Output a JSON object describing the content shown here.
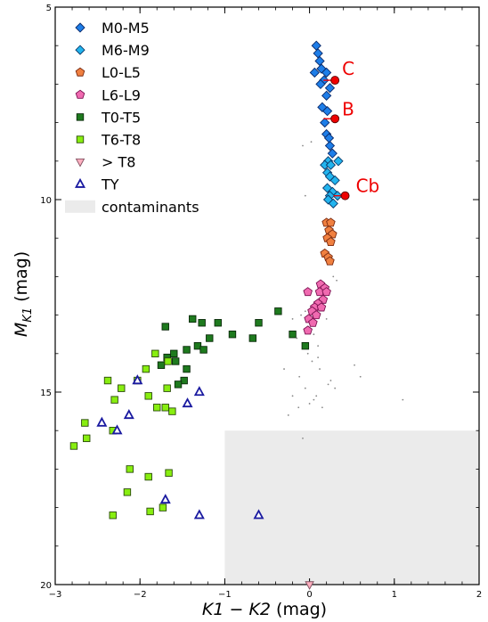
{
  "chart_data": {
    "type": "scatter",
    "xlabel_main": "K1 − K2",
    "xlabel_unit": " (mag)",
    "ylabel_main": "M",
    "ylabel_sub": "K1",
    "ylabel_unit": " (mag)",
    "xlim": [
      -3,
      2
    ],
    "ylim": [
      5,
      20
    ],
    "y_inverted": true,
    "x_ticks": [
      "−3",
      "−2",
      "−1",
      "0",
      "1",
      "2"
    ],
    "y_ticks": [
      "5",
      "10",
      "15",
      "20"
    ],
    "grid": false,
    "legend_placement": "top-left",
    "contaminant_region": {
      "x0": -1,
      "x1": 2,
      "y0": 16,
      "y1": 20,
      "color": "#ebebeb"
    },
    "legend": [
      {
        "label": "M0-M5",
        "marker": "diamond",
        "fill": "#1e7ee8",
        "stroke": "#0a2a6a"
      },
      {
        "label": "M6-M9",
        "marker": "diamond",
        "fill": "#22b4ee",
        "stroke": "#0a3a6a"
      },
      {
        "label": "L0-L5",
        "marker": "pentagon",
        "fill": "#f08040",
        "stroke": "#7a2a10"
      },
      {
        "label": "L6-L9",
        "marker": "pentagon",
        "fill": "#f06ab0",
        "stroke": "#7a1050"
      },
      {
        "label": "T0-T5",
        "marker": "square",
        "fill": "#1e7a1e",
        "stroke": "#0a2a0a"
      },
      {
        "label": "T6-T8",
        "marker": "square",
        "fill": "#88ee10",
        "stroke": "#2a4a0a"
      },
      {
        "label": "> T8",
        "marker": "triangle-down",
        "fill": "#ffb0c0",
        "stroke": "#805060"
      },
      {
        "label": "TY",
        "marker": "triangle-up",
        "fill": "#ffffff",
        "stroke": "#1a1aa0"
      },
      {
        "label": "contaminants",
        "marker": "patch",
        "fill": "#ebebeb",
        "stroke": "none"
      }
    ],
    "series": [
      {
        "name": "M0-M5",
        "points": [
          [
            0.08,
            6.0
          ],
          [
            0.1,
            6.2
          ],
          [
            0.12,
            6.4
          ],
          [
            0.14,
            6.6
          ],
          [
            0.06,
            6.7
          ],
          [
            0.2,
            6.7
          ],
          [
            0.17,
            6.9
          ],
          [
            0.13,
            7.0
          ],
          [
            0.24,
            7.1
          ],
          [
            0.2,
            7.3
          ],
          [
            0.15,
            7.6
          ],
          [
            0.21,
            7.7
          ],
          [
            0.18,
            8.0
          ],
          [
            0.2,
            8.3
          ],
          [
            0.24,
            8.6
          ],
          [
            0.27,
            8.8
          ],
          [
            0.23,
            8.4
          ]
        ]
      },
      {
        "name": "M6-M9",
        "points": [
          [
            0.22,
            9.0
          ],
          [
            0.18,
            9.1
          ],
          [
            0.25,
            9.1
          ],
          [
            0.34,
            9.0
          ],
          [
            0.21,
            9.3
          ],
          [
            0.24,
            9.4
          ],
          [
            0.3,
            9.5
          ],
          [
            0.21,
            9.7
          ],
          [
            0.27,
            9.8
          ],
          [
            0.33,
            9.9
          ],
          [
            0.24,
            9.9
          ],
          [
            0.22,
            10.0
          ],
          [
            0.28,
            10.1
          ]
        ]
      },
      {
        "name": "L0-L5",
        "points": [
          [
            0.2,
            10.6
          ],
          [
            0.25,
            10.6
          ],
          [
            0.23,
            10.8
          ],
          [
            0.27,
            10.9
          ],
          [
            0.21,
            11.0
          ],
          [
            0.25,
            11.1
          ],
          [
            0.18,
            11.4
          ],
          [
            0.22,
            11.5
          ],
          [
            0.24,
            11.6
          ]
        ]
      },
      {
        "name": "L6-L9",
        "points": [
          [
            0.13,
            12.2
          ],
          [
            0.18,
            12.3
          ],
          [
            0.12,
            12.4
          ],
          [
            0.2,
            12.4
          ],
          [
            -0.02,
            12.4
          ],
          [
            0.16,
            12.6
          ],
          [
            0.1,
            12.7
          ],
          [
            0.06,
            12.8
          ],
          [
            0.14,
            12.8
          ],
          [
            0.03,
            12.9
          ],
          [
            0.08,
            13.0
          ],
          [
            -0.01,
            13.1
          ],
          [
            0.04,
            13.2
          ],
          [
            -0.02,
            13.4
          ]
        ]
      },
      {
        "name": "T0-T5",
        "points": [
          [
            -1.7,
            13.3
          ],
          [
            -1.38,
            13.1
          ],
          [
            -1.27,
            13.2
          ],
          [
            -1.08,
            13.2
          ],
          [
            -0.6,
            13.2
          ],
          [
            -0.37,
            12.9
          ],
          [
            -1.18,
            13.6
          ],
          [
            -0.91,
            13.5
          ],
          [
            -0.67,
            13.6
          ],
          [
            -0.2,
            13.5
          ],
          [
            -1.32,
            13.8
          ],
          [
            -1.45,
            13.9
          ],
          [
            -1.6,
            14.0
          ],
          [
            -1.68,
            14.1
          ],
          [
            -1.75,
            14.3
          ],
          [
            -1.58,
            14.2
          ],
          [
            -1.45,
            14.4
          ],
          [
            -1.48,
            14.7
          ],
          [
            -1.55,
            14.8
          ],
          [
            -0.05,
            13.8
          ],
          [
            -1.25,
            13.9
          ]
        ]
      },
      {
        "name": "T6-T8",
        "points": [
          [
            -1.82,
            14.0
          ],
          [
            -1.67,
            14.2
          ],
          [
            -1.93,
            14.4
          ],
          [
            -2.38,
            14.7
          ],
          [
            -2.03,
            14.7
          ],
          [
            -2.22,
            14.9
          ],
          [
            -1.68,
            14.9
          ],
          [
            -1.9,
            15.1
          ],
          [
            -2.3,
            15.2
          ],
          [
            -1.8,
            15.4
          ],
          [
            -1.7,
            15.4
          ],
          [
            -1.62,
            15.5
          ],
          [
            -2.65,
            15.8
          ],
          [
            -2.32,
            16.0
          ],
          [
            -2.63,
            16.2
          ],
          [
            -2.78,
            16.4
          ],
          [
            -2.12,
            17.0
          ],
          [
            -1.66,
            17.1
          ],
          [
            -1.9,
            17.2
          ],
          [
            -2.15,
            17.6
          ],
          [
            -1.88,
            18.1
          ],
          [
            -1.73,
            18.0
          ],
          [
            -2.32,
            18.2
          ]
        ]
      },
      {
        "name": "> T8",
        "points": [
          [
            0.0,
            20.0
          ]
        ]
      },
      {
        "name": "TY",
        "points": [
          [
            -2.03,
            14.7
          ],
          [
            -1.3,
            15.0
          ],
          [
            -1.44,
            15.3
          ],
          [
            -2.13,
            15.6
          ],
          [
            -2.45,
            15.8
          ],
          [
            -2.27,
            16.0
          ],
          [
            -1.7,
            17.8
          ],
          [
            -1.3,
            18.2
          ],
          [
            -0.6,
            18.2
          ]
        ]
      }
    ],
    "contaminants": [
      [
        -0.05,
        9.9
      ],
      [
        -0.08,
        8.6
      ],
      [
        0.02,
        8.5
      ],
      [
        0.28,
        12.0
      ],
      [
        0.32,
        12.1
      ],
      [
        -0.05,
        12.9
      ],
      [
        -0.1,
        13.0
      ],
      [
        -0.2,
        13.1
      ],
      [
        0.05,
        13.5
      ],
      [
        0.1,
        13.8
      ],
      [
        -0.02,
        14.0
      ],
      [
        0.03,
        14.2
      ],
      [
        0.12,
        14.4
      ],
      [
        -0.12,
        14.6
      ],
      [
        0.25,
        14.7
      ],
      [
        0.3,
        14.9
      ],
      [
        -0.05,
        14.9
      ],
      [
        0.08,
        15.1
      ],
      [
        -0.2,
        15.1
      ],
      [
        -0.25,
        15.6
      ],
      [
        -0.13,
        15.4
      ],
      [
        0.6,
        14.6
      ],
      [
        0.53,
        14.3
      ],
      [
        -0.08,
        16.2
      ],
      [
        1.1,
        15.2
      ],
      [
        0.05,
        15.2
      ],
      [
        0.15,
        15.4
      ],
      [
        0.0,
        15.3
      ],
      [
        -0.3,
        14.4
      ],
      [
        0.2,
        13.1
      ],
      [
        0.1,
        14.1
      ],
      [
        -0.15,
        13.6
      ],
      [
        0.22,
        14.8
      ]
    ],
    "components": [
      {
        "label": "C",
        "point": [
          0.3,
          6.9
        ]
      },
      {
        "label": "B",
        "point": [
          0.3,
          7.9
        ]
      },
      {
        "label": "Cb",
        "point": [
          0.42,
          9.9
        ]
      }
    ],
    "component_color": "#ee0000"
  }
}
